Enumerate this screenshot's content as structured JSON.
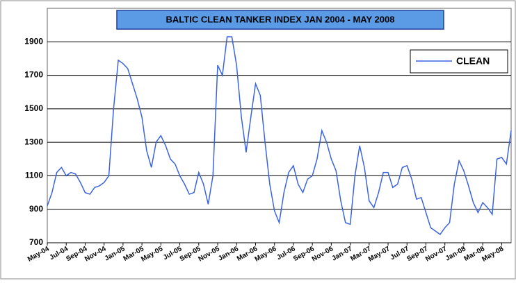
{
  "chart_data": {
    "type": "line",
    "title": "BALTIC CLEAN TANKER INDEX JAN  2004 - MAY 2008",
    "categories": [
      "May-04",
      null,
      null,
      null,
      "Jul-04",
      null,
      null,
      null,
      "Sep-04",
      null,
      null,
      null,
      "Nov-04",
      null,
      null,
      null,
      "Jan-05",
      null,
      null,
      null,
      "Mar-05",
      null,
      null,
      null,
      "May-05",
      null,
      null,
      null,
      "Jul-05",
      null,
      null,
      null,
      "Sep-05",
      null,
      null,
      null,
      "Nov-05",
      null,
      null,
      null,
      "Jan-06",
      null,
      null,
      null,
      "Mar-06",
      null,
      null,
      null,
      "May-06",
      null,
      null,
      null,
      "Jul-06",
      null,
      null,
      null,
      "Sep-06",
      null,
      null,
      null,
      "Nov-06",
      null,
      null,
      null,
      "Jan-07",
      null,
      null,
      null,
      "Mar-07",
      null,
      null,
      null,
      "May-07",
      null,
      null,
      null,
      "Jul-07",
      null,
      null,
      null,
      "Sep-07",
      null,
      null,
      null,
      "Nov-07",
      null,
      null,
      null,
      "Jan-08",
      null,
      null,
      null,
      "Mar-08",
      null,
      null,
      null,
      "May-08",
      null,
      null
    ],
    "series": [
      {
        "name": "CLEAN",
        "color": "#3b63e0",
        "values": [
          920,
          1000,
          1120,
          1150,
          1100,
          1120,
          1110,
          1060,
          1000,
          990,
          1030,
          1040,
          1060,
          1100,
          1500,
          1790,
          1770,
          1740,
          1650,
          1560,
          1450,
          1250,
          1150,
          1300,
          1340,
          1280,
          1200,
          1170,
          1100,
          1050,
          990,
          1000,
          1120,
          1050,
          930,
          1100,
          1760,
          1700,
          1930,
          1930,
          1760,
          1450,
          1240,
          1450,
          1650,
          1580,
          1300,
          1050,
          890,
          820,
          1000,
          1120,
          1160,
          1050,
          1000,
          1080,
          1100,
          1200,
          1370,
          1300,
          1200,
          1130,
          950,
          820,
          810,
          1100,
          1280,
          1150,
          950,
          910,
          1000,
          1120,
          1120,
          1030,
          1050,
          1150,
          1160,
          1080,
          960,
          970,
          880,
          790,
          770,
          750,
          790,
          820,
          1050,
          1190,
          1130,
          1040,
          940,
          880,
          940,
          910,
          870,
          1200,
          1210,
          1170,
          1370
        ]
      }
    ],
    "ylim": [
      700,
      2100
    ],
    "yticks": [
      700,
      900,
      1100,
      1300,
      1500,
      1700,
      1900
    ],
    "grid": true,
    "legend": "top-right"
  }
}
